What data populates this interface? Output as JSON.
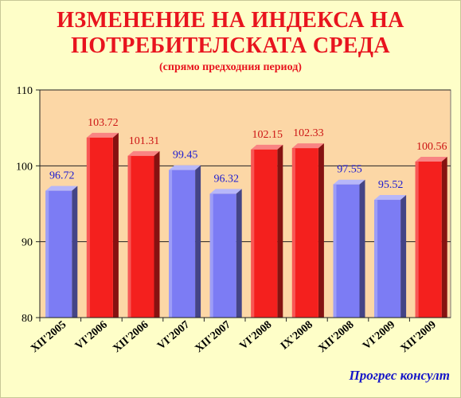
{
  "title_line1": "ИЗМЕНЕНИЕ НА ИНДЕКСА НА",
  "title_line2": "ПОТРЕБИТЕЛСКАТА СРЕДА",
  "subtitle": "(спрямо предходния период)",
  "brand": "Прогрес консулт",
  "colors": {
    "background": "#fefec8",
    "plot_area": "#fcd7a6",
    "title": "#e8141e",
    "brand": "#1616c8",
    "below_100": "#7c7cf4",
    "above_100": "#f4201e",
    "label_below_100": "#1a1ad2",
    "label_above_100": "#cc1414"
  },
  "chart_data": {
    "type": "bar",
    "categories": [
      "XII'2005",
      "VI'2006",
      "XII'2006",
      "VI'2007",
      "XII'2007",
      "VI'2008",
      "IX'2008",
      "XII'2008",
      "VI'2009",
      "XII'2009"
    ],
    "values": [
      96.72,
      103.72,
      101.31,
      99.45,
      96.32,
      102.15,
      102.33,
      97.55,
      95.52,
      100.56
    ],
    "data_labels": [
      "96.72",
      "103.72",
      "101.31",
      "99.45",
      "96.32",
      "102.15",
      "102.33",
      "97.55",
      "95.52",
      "100.56"
    ],
    "yticks": [
      80,
      90,
      100,
      110
    ],
    "ylim": [
      80,
      110
    ],
    "grid": "horizontal",
    "legend": "none"
  }
}
